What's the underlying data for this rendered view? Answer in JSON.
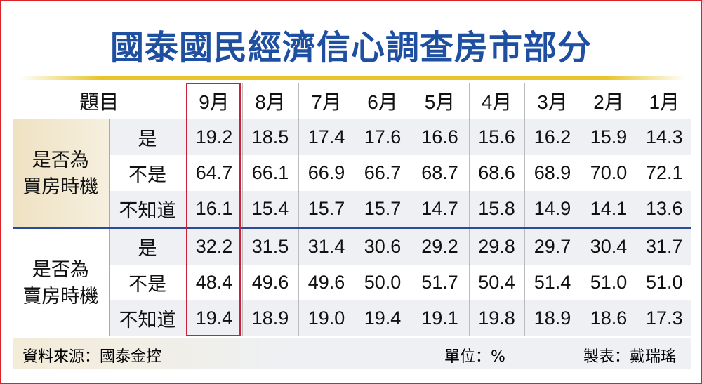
{
  "title": "國泰國民經濟信心調查房市部分",
  "chart_data": {
    "type": "table",
    "title": "國泰國民經濟信心調查房市部分",
    "header_label": "題目",
    "columns": [
      "9月",
      "8月",
      "7月",
      "6月",
      "5月",
      "4月",
      "3月",
      "2月",
      "1月"
    ],
    "highlight_column": "9月",
    "groups": [
      {
        "label_lines": [
          "是否為",
          "買房時機"
        ],
        "rows": [
          {
            "label": "是",
            "values": [
              "19.2",
              "18.5",
              "17.4",
              "17.6",
              "16.6",
              "15.6",
              "16.2",
              "15.9",
              "14.3"
            ]
          },
          {
            "label": "不是",
            "values": [
              "64.7",
              "66.1",
              "66.9",
              "66.7",
              "68.7",
              "68.6",
              "68.9",
              "70.0",
              "72.1"
            ]
          },
          {
            "label": "不知道",
            "values": [
              "16.1",
              "15.4",
              "15.7",
              "15.7",
              "14.7",
              "15.8",
              "14.9",
              "14.1",
              "13.6"
            ]
          }
        ]
      },
      {
        "label_lines": [
          "是否為",
          "賣房時機"
        ],
        "rows": [
          {
            "label": "是",
            "values": [
              "32.2",
              "31.5",
              "31.4",
              "30.6",
              "29.2",
              "29.8",
              "29.7",
              "30.4",
              "31.7"
            ]
          },
          {
            "label": "不是",
            "values": [
              "48.4",
              "49.6",
              "49.6",
              "50.0",
              "51.7",
              "50.4",
              "51.4",
              "51.0",
              "51.0"
            ]
          },
          {
            "label": "不知道",
            "values": [
              "19.4",
              "18.9",
              "19.0",
              "19.4",
              "19.1",
              "19.8",
              "18.9",
              "18.6",
              "17.3"
            ]
          }
        ]
      }
    ]
  },
  "footer": {
    "source": "資料來源：國泰金控",
    "unit": "單位：%",
    "credit": "製表：戴瑞瑤"
  },
  "colors": {
    "title": "#1f4fa0",
    "highlight": "#c8233a",
    "separator": "#2a4a9a",
    "frame": "#d8232a"
  }
}
